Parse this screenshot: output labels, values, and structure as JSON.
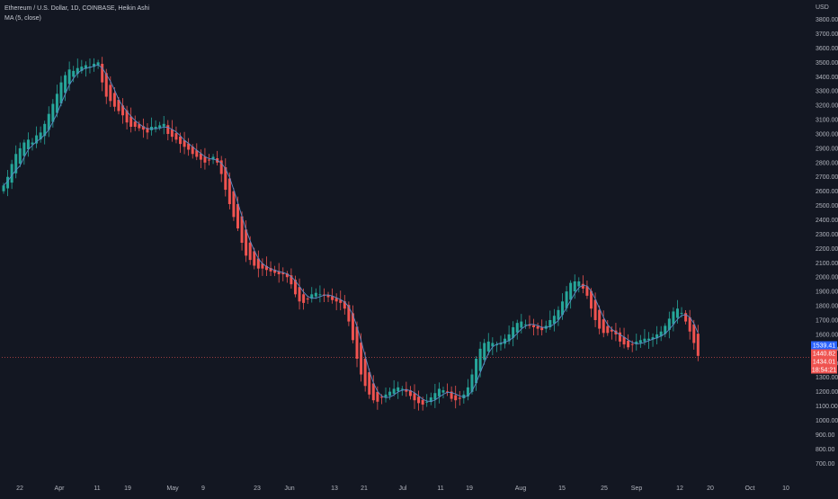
{
  "legend": {
    "symbol_line": "Ethereum / U.S. Dollar, 1D, COINBASE, Heikin Ashi",
    "indicator_line": "MA (5, close)"
  },
  "currency_label": "USD",
  "colors": {
    "background": "#131722",
    "up": "#26a69a",
    "down": "#ef5350",
    "ma_line": "#5b8ac6",
    "grid_text": "#b2b5be",
    "price_line": "#ef5350",
    "ma_tag": "#2962ff"
  },
  "price_tags": [
    {
      "label": "1539.41",
      "color": "#2962ff"
    },
    {
      "label": "1440.82",
      "color": "#ef5350"
    },
    {
      "label": "1434.01",
      "color": "#ef5350"
    },
    {
      "label": "18:54:21",
      "color": "#ef5350"
    }
  ],
  "chart_data": {
    "type": "candlestick",
    "title": "Ethereum / U.S. Dollar, 1D, COINBASE, Heikin Ashi",
    "ylabel": "USD",
    "ylim": [
      620,
      3860
    ],
    "y_ticks": [
      700,
      800,
      900,
      1000,
      1100,
      1200,
      1300,
      1400,
      1500,
      1600,
      1700,
      1800,
      1900,
      2000,
      2100,
      2200,
      2300,
      2400,
      2500,
      2600,
      2700,
      2800,
      2900,
      3000,
      3100,
      3200,
      3300,
      3400,
      3500,
      3600,
      3700,
      3800
    ],
    "x_ticks": [
      "22",
      "Apr",
      "11",
      "19",
      "May",
      "9",
      "23",
      "Jun",
      "13",
      "21",
      "Jul",
      "11",
      "19",
      "Aug",
      "15",
      "25",
      "Sep",
      "12",
      "20",
      "Oct",
      "10"
    ],
    "last_price": 1440.82,
    "ma_value": 1539.41,
    "series": [
      {
        "name": "Heikin Ashi",
        "closes": [
          2640,
          2700,
          2790,
          2860,
          2900,
          2940,
          2960,
          2940,
          2990,
          3010,
          3070,
          3140,
          3210,
          3280,
          3360,
          3410,
          3450,
          3440,
          3460,
          3470,
          3480,
          3470,
          3490,
          3500,
          3360,
          3260,
          3230,
          3190,
          3160,
          3130,
          3080,
          3050,
          3050,
          3040,
          3030,
          3010,
          3050,
          3050,
          3060,
          3070,
          3000,
          2980,
          2960,
          2930,
          2910,
          2890,
          2860,
          2840,
          2820,
          2800,
          2820,
          2840,
          2800,
          2720,
          2610,
          2510,
          2420,
          2340,
          2240,
          2150,
          2120,
          2080,
          2060,
          2060,
          2050,
          2040,
          2030,
          2020,
          2020,
          2000,
          1950,
          1880,
          1830,
          1820,
          1850,
          1880,
          1890,
          1880,
          1870,
          1860,
          1840,
          1830,
          1820,
          1780,
          1690,
          1560,
          1430,
          1320,
          1240,
          1180,
          1140,
          1130,
          1160,
          1180,
          1200,
          1220,
          1230,
          1220,
          1200,
          1170,
          1140,
          1120,
          1110,
          1130,
          1160,
          1190,
          1220,
          1210,
          1200,
          1150,
          1140,
          1150,
          1180,
          1230,
          1320,
          1430,
          1500,
          1540,
          1550,
          1540,
          1530,
          1540,
          1570,
          1600,
          1650,
          1680,
          1690,
          1670,
          1660,
          1650,
          1640,
          1630,
          1660,
          1700,
          1730,
          1770,
          1830,
          1900,
          1960,
          1970,
          1970,
          1920,
          1870,
          1780,
          1700,
          1640,
          1610,
          1610,
          1620,
          1600,
          1550,
          1530,
          1510,
          1530,
          1550,
          1560,
          1570,
          1570,
          1580,
          1600,
          1620,
          1660,
          1710,
          1760,
          1780,
          1750,
          1690,
          1620,
          1540,
          1450
        ]
      }
    ],
    "ma_series": {
      "name": "MA (5, close)",
      "period": 5
    }
  }
}
